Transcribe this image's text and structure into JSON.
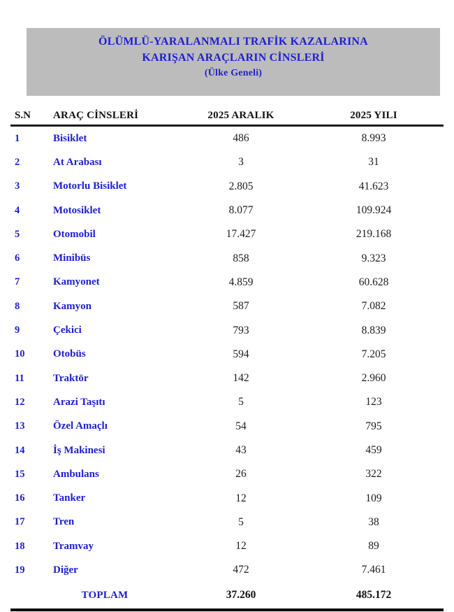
{
  "header": {
    "title_line1": "ÖLÜMLÜ-YARALANMALI TRAFİK KAZALARINA",
    "title_line2": "KARIŞAN ARAÇLARIN CİNSLERİ",
    "title_line3": "(Ülke Geneli)",
    "bg_color": "#bcbcbc",
    "text_color": "#1e1ecd"
  },
  "table": {
    "columns": {
      "sn": "S.N",
      "name": "ARAÇ CİNSLERİ",
      "month": "2025 ARALIK",
      "year": "2025 YILI"
    },
    "rows": [
      {
        "sn": "1",
        "name": "Bisiklet",
        "month": "486",
        "year": "8.993"
      },
      {
        "sn": "2",
        "name": "At Arabası",
        "month": "3",
        "year": "31"
      },
      {
        "sn": "3",
        "name": "Motorlu Bisiklet",
        "month": "2.805",
        "year": "41.623"
      },
      {
        "sn": "4",
        "name": "Motosiklet",
        "month": "8.077",
        "year": "109.924"
      },
      {
        "sn": "5",
        "name": "Otomobil",
        "month": "17.427",
        "year": "219.168"
      },
      {
        "sn": "6",
        "name": "Minibüs",
        "month": "858",
        "year": "9.323"
      },
      {
        "sn": "7",
        "name": "Kamyonet",
        "month": "4.859",
        "year": "60.628"
      },
      {
        "sn": "8",
        "name": "Kamyon",
        "month": "587",
        "year": "7.082"
      },
      {
        "sn": "9",
        "name": "Çekici",
        "month": "793",
        "year": "8.839"
      },
      {
        "sn": "10",
        "name": "Otobüs",
        "month": "594",
        "year": "7.205"
      },
      {
        "sn": "11",
        "name": "Traktör",
        "month": "142",
        "year": "2.960"
      },
      {
        "sn": "12",
        "name": "Arazi Taşıtı",
        "month": "5",
        "year": "123"
      },
      {
        "sn": "13",
        "name": "Özel Amaçlı",
        "month": "54",
        "year": "795"
      },
      {
        "sn": "14",
        "name": "İş Makinesi",
        "month": "43",
        "year": "459"
      },
      {
        "sn": "15",
        "name": "Ambulans",
        "month": "26",
        "year": "322"
      },
      {
        "sn": "16",
        "name": "Tanker",
        "month": "12",
        "year": "109"
      },
      {
        "sn": "17",
        "name": "Tren",
        "month": "5",
        "year": "38"
      },
      {
        "sn": "18",
        "name": "Tramvay",
        "month": "12",
        "year": "89"
      },
      {
        "sn": "19",
        "name": "Diğer",
        "month": "472",
        "year": "7.461"
      }
    ],
    "total": {
      "label": "TOPLAM",
      "month": "37.260",
      "year": "485.172"
    }
  }
}
